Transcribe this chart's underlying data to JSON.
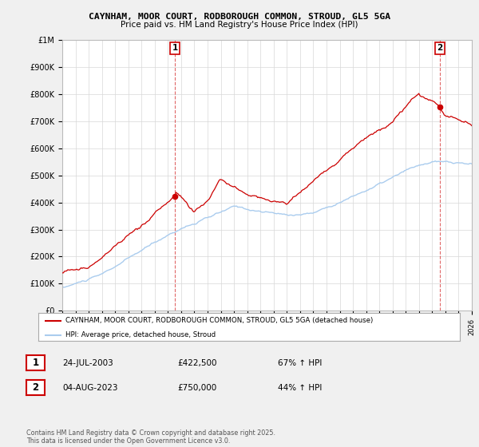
{
  "title1": "CAYNHAM, MOOR COURT, RODBOROUGH COMMON, STROUD, GL5 5GA",
  "title2": "Price paid vs. HM Land Registry's House Price Index (HPI)",
  "bg_color": "#f0f0f0",
  "plot_bg": "#ffffff",
  "red_color": "#cc0000",
  "blue_color": "#aaccee",
  "legend_red": "CAYNHAM, MOOR COURT, RODBOROUGH COMMON, STROUD, GL5 5GA (detached house)",
  "legend_blue": "HPI: Average price, detached house, Stroud",
  "table_rows": [
    {
      "num": "1",
      "date": "24-JUL-2003",
      "price": "£422,500",
      "hpi": "67% ↑ HPI"
    },
    {
      "num": "2",
      "date": "04-AUG-2023",
      "price": "£750,000",
      "hpi": "44% ↑ HPI"
    }
  ],
  "footer": "Contains HM Land Registry data © Crown copyright and database right 2025.\nThis data is licensed under the Open Government Licence v3.0.",
  "ylim": [
    0,
    1000000
  ],
  "yticks": [
    0,
    100000,
    200000,
    300000,
    400000,
    500000,
    600000,
    700000,
    800000,
    900000,
    1000000
  ],
  "ytick_labels": [
    "£0",
    "£100K",
    "£200K",
    "£300K",
    "£400K",
    "£500K",
    "£600K",
    "£700K",
    "£800K",
    "£900K",
    "£1M"
  ],
  "x_start_year": 1995,
  "x_end_year": 2026,
  "sale1_year": 2003.55,
  "sale1_price": 422500,
  "sale2_year": 2023.6,
  "sale2_price": 750000
}
